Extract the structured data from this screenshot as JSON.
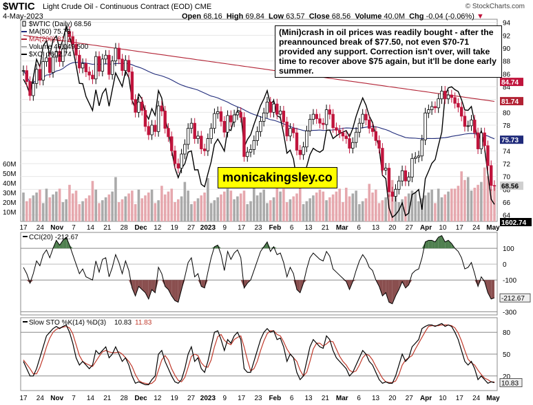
{
  "header": {
    "symbol": "$WTIC",
    "name": "Light Crude Oil - Continuous Contract (EOD)",
    "exchange": "CME",
    "date": "4-May-2023",
    "open_label": "Open",
    "open": "68.16",
    "high_label": "High",
    "high": "69.84",
    "low_label": "Low",
    "low": "63.57",
    "close_label": "Close",
    "close": "68.56",
    "volume_label": "Volume",
    "volume": "40.0M",
    "chg_label": "Chg",
    "chg": "-0.04 (-0.06%)",
    "copyright": "© StockCharts.com"
  },
  "annotation": "(Mini)crash in oil prices was readily bought - after the preannounced break of $77.50, not even $70-71 provided any support. Correction isn't over, will take time to recover above $75 again, but it'll be done early summer.",
  "watermark": "monicakingsley.co",
  "colors": {
    "up_candle": "#000000",
    "down_candle": "#c0143c",
    "ma50": "#1f2a7a",
    "ma200": "#b22234",
    "xoi": "#000000",
    "volume_up": "#aaaaaa",
    "volume_down": "#e6a8ae",
    "cci_pos_fill": "#4f7f4f",
    "cci_neg_fill": "#8a4f4f",
    "stoch_k": "#000000",
    "stoch_d": "#c0392b",
    "tag_ma50": "#1f2a7a",
    "tag_ma200": "#b22234",
    "tag_price": "#cfcfcf",
    "tag_xoi": "#000000"
  },
  "chart_data": [
    {
      "type": "candlestick",
      "legend": [
        {
          "label": "$WTIC (Daily) 68.56",
          "marker": "candle"
        },
        {
          "label": "MA(50) 75.73",
          "color": "#1f2a7a"
        },
        {
          "label": "MA(200) 81.74",
          "color": "#b22234"
        },
        {
          "label": "Volume 40,049,500",
          "color": "#aaaaaa"
        },
        {
          "label": "$XOI 1602.74",
          "color": "#000000"
        }
      ],
      "y_ticks": [
        "94",
        "92",
        "90",
        "88",
        "86",
        "84",
        "82",
        "80",
        "78",
        "76",
        "74",
        "72",
        "70",
        "68",
        "66",
        "64"
      ],
      "ylim": [
        63,
        94.5
      ],
      "value_tags": [
        {
          "label": "84.74",
          "value": 84.74
        },
        {
          "label": "81.74",
          "value": 81.74,
          "series": "MA(200)"
        },
        {
          "label": "75.73",
          "value": 75.73,
          "series": "MA(50)"
        },
        {
          "label": "68.56",
          "value": 68.56,
          "series": "$WTIC"
        },
        {
          "label": "1602.74",
          "value": 63.8,
          "series": "$XOI"
        }
      ],
      "volume_ticks": [
        "60M",
        "50M",
        "40M",
        "30M",
        "20M",
        "10M"
      ],
      "volume_max": 60,
      "closes": [
        86.5,
        84.8,
        82.6,
        84.5,
        86.7,
        85.0,
        87.9,
        88.5,
        86.2,
        88.6,
        89.5,
        87.9,
        89.9,
        92.6,
        91.8,
        90.6,
        88.9,
        86.9,
        87.6,
        86.3,
        85.8,
        85.2,
        88.7,
        86.4,
        88.3,
        88.9,
        85.9,
        88.0,
        90.0,
        88.3,
        86.5,
        88.1,
        86.3,
        82.0,
        80.0,
        81.6,
        80.3,
        77.8,
        76.5,
        78.0,
        77.0,
        81.0,
        80.2,
        77.5,
        76.2,
        74.0,
        72.0,
        71.3,
        73.5,
        75.0,
        77.5,
        78.3,
        75.9,
        76.3,
        74.3,
        74.0,
        75.9,
        77.5,
        79.8,
        80.1,
        78.6,
        76.9,
        79.5,
        78.5,
        79.6,
        80.0,
        79.2,
        73.1,
        73.8,
        74.2,
        75.6,
        77.0,
        78.6,
        79.9,
        81.6,
        80.0,
        81.3,
        79.7,
        80.2,
        78.5,
        76.3,
        77.5,
        76.8,
        74.1,
        73.4,
        74.6,
        77.1,
        78.9,
        79.7,
        79.0,
        78.3,
        78.1,
        80.4,
        79.7,
        77.6,
        77.2,
        76.8,
        76.3,
        75.9,
        74.4,
        75.3,
        76.9,
        78.3,
        79.7,
        78.8,
        77.5,
        77.0,
        75.6,
        74.4,
        71.0,
        71.3,
        67.6,
        66.9,
        68.0,
        69.3,
        70.9,
        69.3,
        69.9,
        72.8,
        73.0,
        73.2,
        75.7,
        79.9,
        80.4,
        80.9,
        80.7,
        82.1,
        83.3,
        82.1,
        82.7,
        82.3,
        81.4,
        80.8,
        79.4,
        77.8,
        77.9,
        78.8,
        76.8,
        74.3,
        76.8,
        74.8,
        71.7,
        68.6,
        68.56
      ]
    },
    {
      "type": "line",
      "legend": [
        {
          "label": "CCI(20) -212.67",
          "color": "#000000"
        }
      ],
      "y_ticks": [
        "100",
        "0",
        "-100",
        "-300"
      ],
      "value_tag": {
        "label": "-212.67",
        "value": -212.67
      },
      "ylim": [
        -320,
        200
      ],
      "x_ticks": [
        "17",
        "24",
        "Nov",
        "7",
        "14",
        "21",
        "28",
        "Dec",
        "12",
        "19",
        "27",
        "2023",
        "9",
        "17",
        "23",
        "Feb",
        "6",
        "13",
        "21",
        "Mar",
        "6",
        "13",
        "20",
        "27",
        "Apr",
        "10",
        "17",
        "24",
        "May"
      ],
      "series": [
        {
          "name": "CCI(20)",
          "values": [
            -20,
            -60,
            -120,
            -60,
            20,
            -10,
            60,
            90,
            40,
            100,
            150,
            120,
            150,
            170,
            120,
            60,
            0,
            -60,
            -30,
            -80,
            -90,
            -100,
            20,
            -50,
            30,
            40,
            -80,
            -20,
            60,
            10,
            -60,
            20,
            -40,
            -150,
            -200,
            -140,
            -160,
            -180,
            -220,
            -160,
            -180,
            -20,
            -60,
            -140,
            -160,
            -200,
            -230,
            -240,
            -160,
            -80,
            10,
            40,
            -80,
            -60,
            -140,
            -150,
            -50,
            40,
            110,
            120,
            60,
            -40,
            80,
            30,
            70,
            90,
            40,
            -150,
            -120,
            -100,
            -40,
            20,
            80,
            110,
            140,
            80,
            110,
            60,
            70,
            10,
            -80,
            -20,
            -60,
            -160,
            -180,
            -120,
            -30,
            40,
            70,
            50,
            30,
            20,
            80,
            50,
            -30,
            -50,
            -70,
            -90,
            -110,
            -160,
            -110,
            -40,
            20,
            60,
            30,
            -20,
            -40,
            -100,
            -140,
            -200,
            -180,
            -240,
            -250,
            -200,
            -160,
            -110,
            -150,
            -130,
            -60,
            -40,
            -30,
            40,
            140,
            150,
            150,
            140,
            170,
            180,
            140,
            150,
            130,
            100,
            80,
            40,
            -30,
            -20,
            10,
            -60,
            -140,
            -80,
            -110,
            -180,
            -220,
            -212.67
          ]
        }
      ]
    },
    {
      "type": "line",
      "legend": [
        {
          "label": "Slow STO %K(14) %D(3)",
          "color": "#000000"
        },
        {
          "label": "10.83",
          "color": "#000000"
        },
        {
          "label": "11.83",
          "color": "#c0392b"
        }
      ],
      "y_ticks": [
        "80",
        "50",
        "20"
      ],
      "value_tag": {
        "label": "10.83",
        "value": 10.83
      },
      "ylim": [
        0,
        100
      ],
      "x_ticks": [
        "17",
        "24",
        "Nov",
        "7",
        "14",
        "21",
        "28",
        "Dec",
        "12",
        "19",
        "27",
        "2023",
        "9",
        "17",
        "23",
        "Feb",
        "6",
        "13",
        "21",
        "Mar",
        "6",
        "13",
        "20",
        "27",
        "Apr",
        "10",
        "17",
        "24",
        "May"
      ],
      "series": [
        {
          "name": "%K",
          "values": [
            40,
            30,
            20,
            20,
            30,
            45,
            60,
            75,
            80,
            85,
            88,
            85,
            88,
            90,
            80,
            65,
            45,
            35,
            40,
            35,
            30,
            35,
            55,
            50,
            55,
            60,
            45,
            50,
            60,
            50,
            40,
            45,
            35,
            20,
            10,
            12,
            10,
            8,
            8,
            15,
            20,
            50,
            55,
            40,
            30,
            20,
            12,
            10,
            15,
            30,
            50,
            60,
            40,
            45,
            30,
            25,
            40,
            60,
            80,
            82,
            70,
            55,
            70,
            65,
            75,
            80,
            70,
            30,
            25,
            25,
            40,
            55,
            70,
            80,
            85,
            80,
            82,
            70,
            72,
            60,
            40,
            50,
            45,
            25,
            15,
            20,
            40,
            60,
            70,
            65,
            60,
            58,
            75,
            70,
            55,
            45,
            40,
            35,
            30,
            20,
            25,
            35,
            45,
            55,
            50,
            40,
            35,
            25,
            15,
            10,
            12,
            10,
            10,
            20,
            35,
            50,
            40,
            45,
            60,
            65,
            70,
            85,
            88,
            90,
            90,
            88,
            90,
            92,
            88,
            90,
            88,
            80,
            70,
            55,
            40,
            35,
            40,
            30,
            15,
            20,
            15,
            10,
            12,
            10.83
          ]
        },
        {
          "name": "%D",
          "values": [
            42,
            36,
            30,
            23,
            23,
            32,
            45,
            60,
            72,
            80,
            84,
            86,
            87,
            88,
            86,
            78,
            63,
            48,
            40,
            37,
            35,
            33,
            40,
            47,
            53,
            55,
            53,
            52,
            52,
            53,
            50,
            45,
            40,
            33,
            22,
            14,
            11,
            10,
            9,
            10,
            14,
            28,
            42,
            48,
            42,
            30,
            21,
            14,
            12,
            18,
            32,
            47,
            50,
            48,
            38,
            33,
            32,
            42,
            60,
            74,
            77,
            69,
            65,
            63,
            70,
            73,
            75,
            60,
            42,
            27,
            30,
            40,
            55,
            68,
            78,
            82,
            82,
            77,
            75,
            67,
            57,
            50,
            45,
            40,
            28,
            20,
            25,
            40,
            57,
            65,
            65,
            61,
            64,
            68,
            67,
            57,
            47,
            40,
            35,
            28,
            25,
            27,
            35,
            45,
            50,
            48,
            42,
            33,
            25,
            17,
            12,
            11,
            11,
            13,
            22,
            35,
            42,
            45,
            48,
            57,
            65,
            73,
            81,
            88,
            89,
            89,
            89,
            90,
            90,
            90,
            89,
            86,
            79,
            68,
            55,
            43,
            38,
            35,
            28,
            22,
            17,
            15,
            12,
            11.83
          ]
        }
      ]
    }
  ]
}
